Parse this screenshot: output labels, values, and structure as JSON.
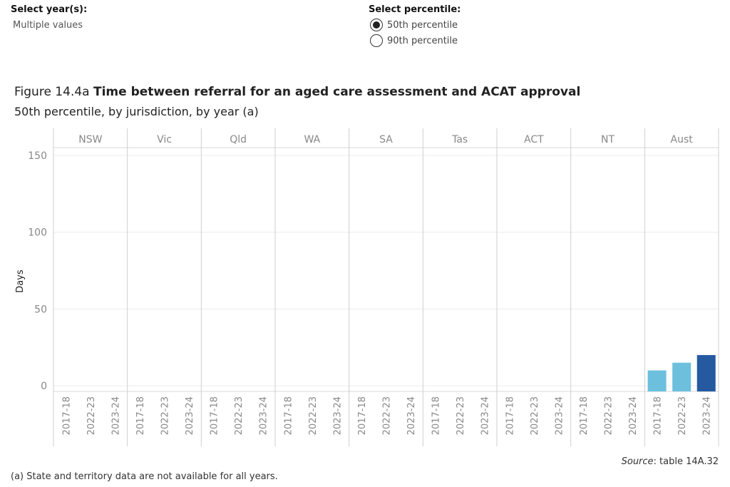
{
  "filters": {
    "year": {
      "label": "Select year(s):",
      "value": "Multiple values"
    },
    "percentile": {
      "label": "Select percentile:",
      "options": [
        {
          "label": "50th percentile",
          "selected": true
        },
        {
          "label": "90th percentile",
          "selected": false
        }
      ]
    }
  },
  "figure": {
    "number": "Figure 14.4a",
    "title": "Time between referral for an aged care assessment and ACAT approval",
    "subtitle": "50th percentile, by jurisdiction, by year (a)"
  },
  "chart_data": {
    "type": "bar",
    "panels": [
      "NSW",
      "Vic",
      "Qld",
      "WA",
      "SA",
      "Tas",
      "ACT",
      "NT",
      "Aust"
    ],
    "categories": [
      "2017-18",
      "2022-23",
      "2023-24"
    ],
    "ylabel": "Days",
    "xlabel": "",
    "ylim": [
      0,
      150
    ],
    "yticks": [
      0,
      50,
      100,
      150
    ],
    "grid": true,
    "colors": {
      "2017-18": "#6cc0dd",
      "2022-23": "#6cc0dd",
      "2023-24": "#255aa0"
    },
    "values": {
      "NSW": [
        null,
        null,
        null
      ],
      "Vic": [
        null,
        null,
        null
      ],
      "Qld": [
        null,
        null,
        null
      ],
      "WA": [
        null,
        null,
        null
      ],
      "SA": [
        null,
        null,
        null
      ],
      "Tas": [
        null,
        null,
        null
      ],
      "ACT": [
        null,
        null,
        null
      ],
      "NT": [
        null,
        null,
        null
      ],
      "Aust": [
        10,
        15,
        20
      ]
    }
  },
  "source": {
    "label": "Source",
    "text": ": table 14A.32"
  },
  "footnote": "(a) State and territory data are not available for all years."
}
